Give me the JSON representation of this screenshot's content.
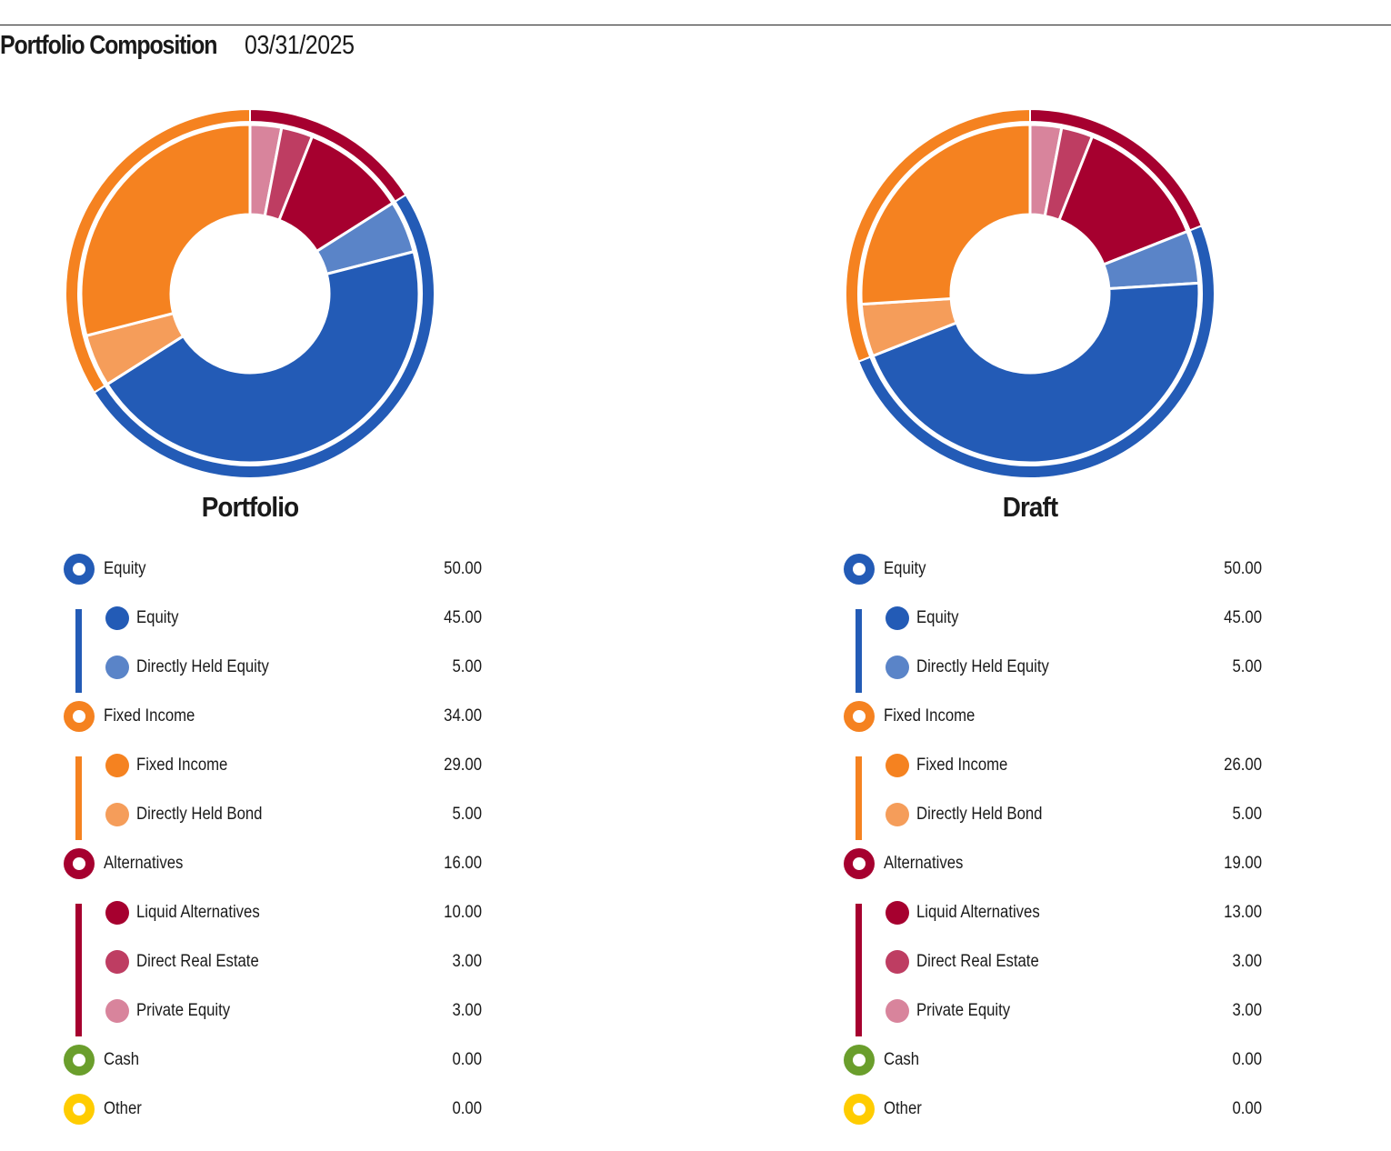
{
  "header": {
    "title": "Portfolio Composition",
    "date": "03/31/2025"
  },
  "chart_data": [
    {
      "type": "pie",
      "title": "Portfolio",
      "groups": [
        {
          "name": "Equity",
          "value": "50.00",
          "color": "#235bb6",
          "children": [
            {
              "name": "Equity",
              "value": "45.00",
              "color": "#235bb6"
            },
            {
              "name": "Directly Held Equity",
              "value": "5.00",
              "color": "#5a84c8"
            }
          ]
        },
        {
          "name": "Fixed Income",
          "value": "34.00",
          "color": "#f58220",
          "children": [
            {
              "name": "Fixed Income",
              "value": "29.00",
              "color": "#f58220"
            },
            {
              "name": "Directly Held Bond",
              "value": "5.00",
              "color": "#f59d5a"
            }
          ]
        },
        {
          "name": "Alternatives",
          "value": "16.00",
          "color": "#a6002f",
          "children": [
            {
              "name": "Liquid Alternatives",
              "value": "10.00",
              "color": "#a6002f"
            },
            {
              "name": "Direct Real Estate",
              "value": "3.00",
              "color": "#be3d62"
            },
            {
              "name": "Private Equity",
              "value": "3.00",
              "color": "#d8849c"
            }
          ]
        },
        {
          "name": "Cash",
          "value": "0.00",
          "color": "#6a9e2c",
          "children": []
        },
        {
          "name": "Other",
          "value": "0.00",
          "color": "#ffcc00",
          "children": []
        }
      ]
    },
    {
      "type": "pie",
      "title": "Draft",
      "groups": [
        {
          "name": "Equity",
          "value": "50.00",
          "color": "#235bb6",
          "children": [
            {
              "name": "Equity",
              "value": "45.00",
              "color": "#235bb6"
            },
            {
              "name": "Directly Held Equity",
              "value": "5.00",
              "color": "#5a84c8"
            }
          ]
        },
        {
          "name": "Fixed Income",
          "value": "",
          "color": "#f58220",
          "children": [
            {
              "name": "Fixed Income",
              "value": "26.00",
              "color": "#f58220"
            },
            {
              "name": "Directly Held Bond",
              "value": "5.00",
              "color": "#f59d5a"
            }
          ]
        },
        {
          "name": "Alternatives",
          "value": "19.00",
          "color": "#a6002f",
          "children": [
            {
              "name": "Liquid Alternatives",
              "value": "13.00",
              "color": "#a6002f"
            },
            {
              "name": "Direct Real Estate",
              "value": "3.00",
              "color": "#be3d62"
            },
            {
              "name": "Private Equity",
              "value": "3.00",
              "color": "#d8849c"
            }
          ]
        },
        {
          "name": "Cash",
          "value": "0.00",
          "color": "#6a9e2c",
          "children": []
        },
        {
          "name": "Other",
          "value": "0.00",
          "color": "#ffcc00",
          "children": []
        }
      ]
    }
  ]
}
